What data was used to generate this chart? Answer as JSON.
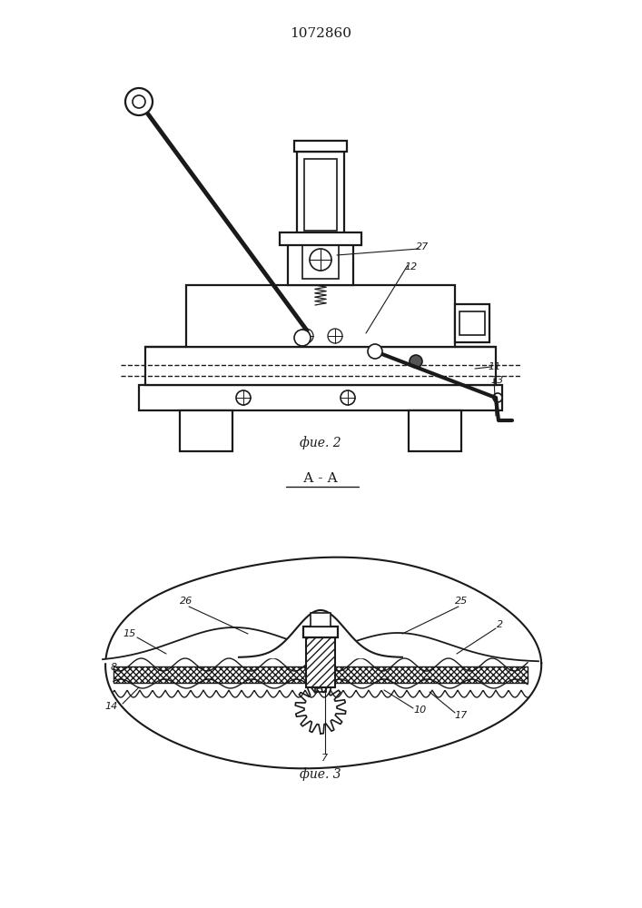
{
  "title": "1072860",
  "fig2_caption": "фие. 2",
  "fig3_caption": "фие. 3",
  "section_label": "А - А",
  "bg_color": "#ffffff",
  "line_color": "#1a1a1a"
}
